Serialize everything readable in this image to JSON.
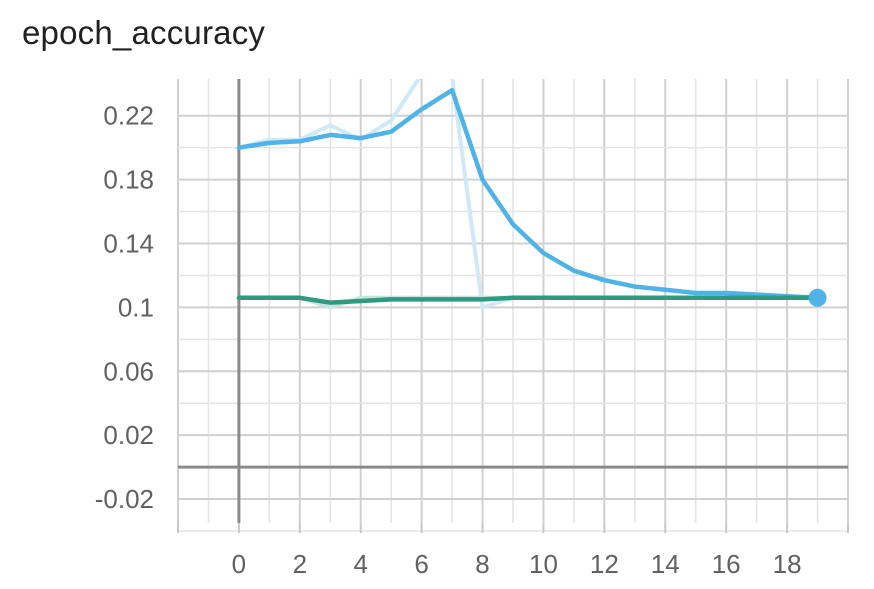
{
  "chart_data": {
    "type": "line",
    "title": "epoch_accuracy",
    "xlabel": "",
    "ylabel": "",
    "xlim": [
      -2,
      20
    ],
    "ylim": [
      -0.035,
      0.243
    ],
    "x_ticks": [
      "0",
      "2",
      "4",
      "6",
      "8",
      "10",
      "12",
      "14",
      "16",
      "18"
    ],
    "x_tick_values": [
      0,
      2,
      4,
      6,
      8,
      10,
      12,
      14,
      16,
      18
    ],
    "y_ticks": [
      "0.22",
      "0.18",
      "0.14",
      "0.1",
      "0.06",
      "0.02",
      "-0.02"
    ],
    "y_tick_values": [
      0.22,
      0.18,
      0.14,
      0.1,
      0.06,
      0.02,
      -0.02
    ],
    "grid": true,
    "series": [
      {
        "color": "#4fb3e8",
        "raw_color": "#cfe9f7",
        "x": [
          0,
          1,
          2,
          3,
          4,
          5,
          6,
          7,
          8,
          9,
          10,
          11,
          12,
          13,
          14,
          15,
          16,
          17,
          18,
          19
        ],
        "raw_values": [
          0.2,
          0.205,
          0.205,
          0.214,
          0.205,
          0.217,
          0.246,
          0.244,
          0.1,
          0.106,
          0.106,
          0.106,
          0.106,
          0.106,
          0.106,
          0.106,
          0.106,
          0.106,
          0.106,
          0.106
        ],
        "smoothed_values": [
          0.2,
          0.203,
          0.204,
          0.208,
          0.206,
          0.21,
          0.224,
          0.236,
          0.18,
          0.152,
          0.134,
          0.123,
          0.117,
          0.113,
          0.111,
          0.109,
          0.109,
          0.108,
          0.107,
          0.106
        ]
      },
      {
        "color": "#2e9a7f",
        "raw_color": "#c5e4dc",
        "x": [
          0,
          1,
          2,
          3,
          4,
          5,
          6,
          7,
          8,
          9,
          10,
          11,
          12,
          13,
          14,
          15,
          16,
          17,
          18,
          19
        ],
        "raw_values": [
          0.106,
          0.106,
          0.106,
          0.1,
          0.106,
          0.106,
          0.106,
          0.106,
          0.106,
          0.106,
          0.106,
          0.106,
          0.106,
          0.106,
          0.106,
          0.106,
          0.106,
          0.106,
          0.106,
          0.106
        ],
        "smoothed_values": [
          0.106,
          0.106,
          0.106,
          0.103,
          0.104,
          0.105,
          0.105,
          0.105,
          0.105,
          0.106,
          0.106,
          0.106,
          0.106,
          0.106,
          0.106,
          0.106,
          0.106,
          0.106,
          0.106,
          0.106
        ]
      }
    ],
    "highlight_point": {
      "x": 19,
      "y": 0.106,
      "color": "#4fb3e8"
    }
  }
}
